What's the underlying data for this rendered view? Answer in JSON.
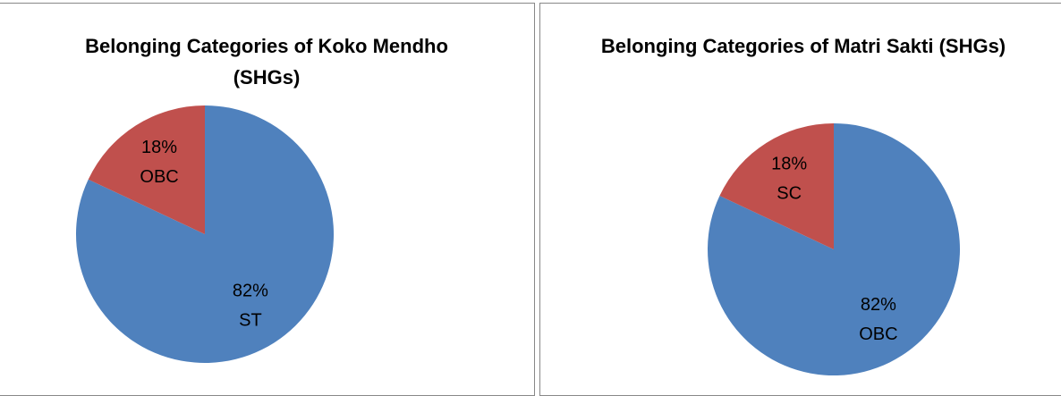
{
  "chart_data": [
    {
      "type": "pie",
      "title": "Belonging Categories of Koko Mendho (SHGs)",
      "categories": [
        "ST",
        "OBC"
      ],
      "values": [
        82,
        18
      ],
      "value_labels": [
        "82%",
        "18%"
      ],
      "colors": [
        "#4f81bd",
        "#c0504d"
      ]
    },
    {
      "type": "pie",
      "title": "Belonging Categories of Matri Sakti (SHGs)",
      "categories": [
        "OBC",
        "SC"
      ],
      "values": [
        82,
        18
      ],
      "value_labels": [
        "82%",
        "18%"
      ],
      "colors": [
        "#4f81bd",
        "#c0504d"
      ]
    }
  ]
}
